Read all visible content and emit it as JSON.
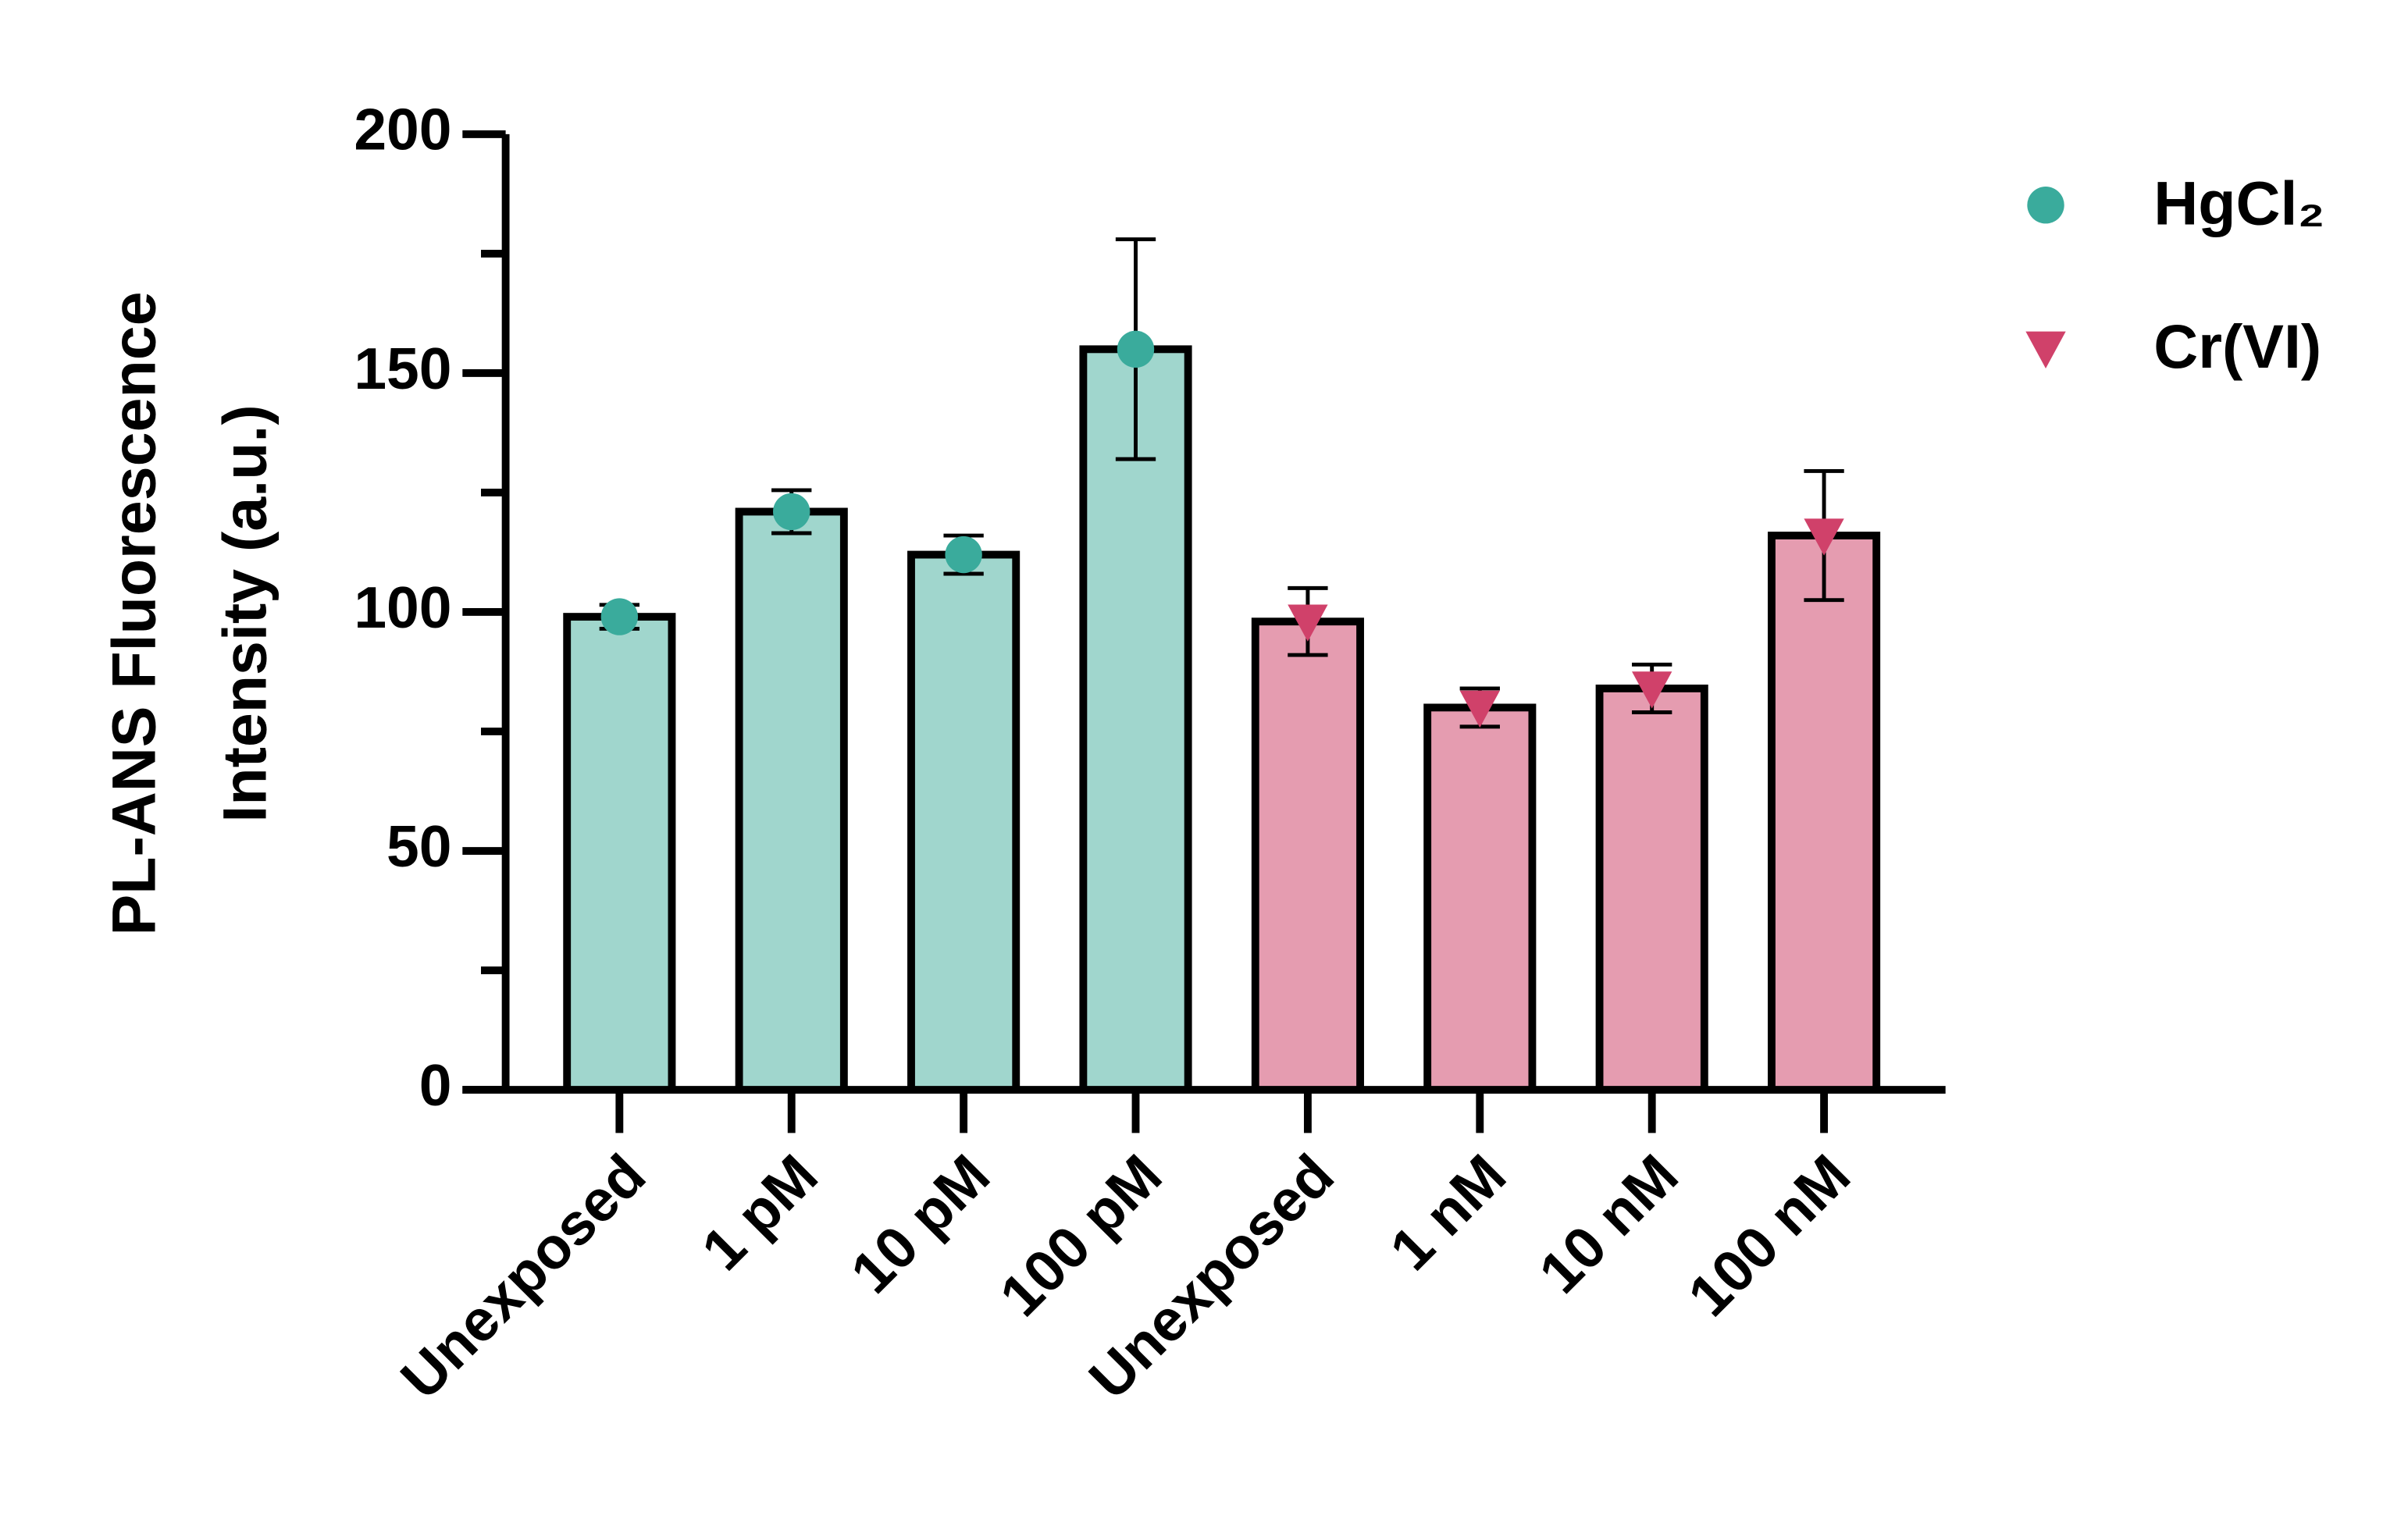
{
  "chart_data": {
    "type": "bar",
    "ylabel": [
      "PL-ANS Fluorescence",
      "Intensity (a.u.)"
    ],
    "categories": [
      "Unexposed",
      "1 pM",
      "10 pM",
      "100 pM",
      "Unexposed",
      "1 nM",
      "10 nM",
      "100 nM"
    ],
    "series": [
      {
        "name": "HgCl₂",
        "color": "#a0d6cd",
        "marker_color": "#3aab9c",
        "marker": "circle",
        "values": [
          99,
          121,
          112,
          155,
          null,
          null,
          null,
          null
        ],
        "errors": [
          2.5,
          4.5,
          4,
          23,
          null,
          null,
          null,
          null
        ]
      },
      {
        "name": "Cr(VI)",
        "color": "#e59cb0",
        "marker_color": "#d0416a",
        "marker": "triangle-down",
        "values": [
          null,
          null,
          null,
          null,
          98,
          80,
          84,
          116
        ],
        "errors": [
          null,
          null,
          null,
          null,
          7,
          4,
          5,
          13.5
        ]
      }
    ],
    "ylim": [
      0,
      200
    ],
    "yticks": [
      0,
      50,
      100,
      150,
      200
    ],
    "yticks_minor": [
      25,
      75,
      125,
      175
    ],
    "legend": "right"
  }
}
